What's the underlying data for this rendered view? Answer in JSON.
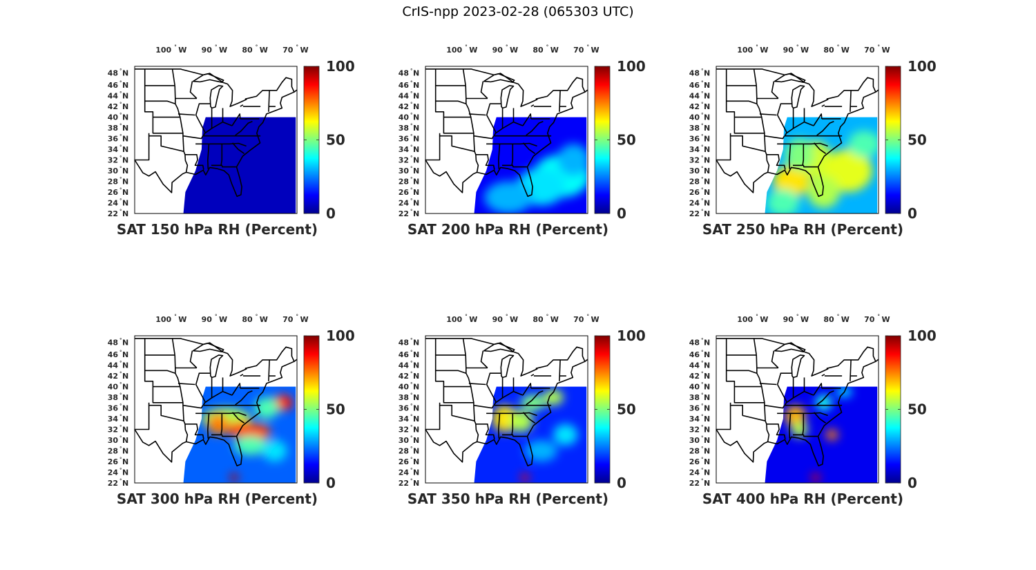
{
  "title": "CrIS-npp 2023-02-28 (065303 UTC)",
  "lon_labels": [
    "100",
    "90",
    "80",
    "70"
  ],
  "lon_hemi": "W",
  "lat_labels": [
    "48",
    "46",
    "44",
    "42",
    "40",
    "38",
    "36",
    "34",
    "32",
    "30",
    "28",
    "26",
    "24",
    "22"
  ],
  "lat_hemi": "N",
  "degree_symbol": "°",
  "colorbar": {
    "min_label": "0",
    "mid_label": "50",
    "max_label": "100",
    "colormap": "jet"
  },
  "panels": [
    {
      "title": "SAT 150 hPa RH (Percent)",
      "level_hPa": 150,
      "mean_rh": 6,
      "moist_region": "none"
    },
    {
      "title": "SAT 200 hPa RH (Percent)",
      "level_hPa": 200,
      "mean_rh": 12,
      "moist_region": "southeast offshore"
    },
    {
      "title": "SAT 250 hPa RH (Percent)",
      "level_hPa": 250,
      "mean_rh": 30,
      "moist_region": "Gulf coast and Florida"
    },
    {
      "title": "SAT 300 hPa RH (Percent)",
      "level_hPa": 300,
      "mean_rh": 22,
      "moist_region": "Tennessee valley band"
    },
    {
      "title": "SAT 350 hPa RH (Percent)",
      "level_hPa": 350,
      "mean_rh": 16,
      "moist_region": "Alabama / Georgia"
    },
    {
      "title": "SAT 400 hPa RH (Percent)",
      "level_hPa": 400,
      "mean_rh": 11,
      "moist_region": "Alabama"
    }
  ],
  "colors": {
    "land_fill": "#ffffff",
    "border": "#000000",
    "text": "#262626"
  }
}
